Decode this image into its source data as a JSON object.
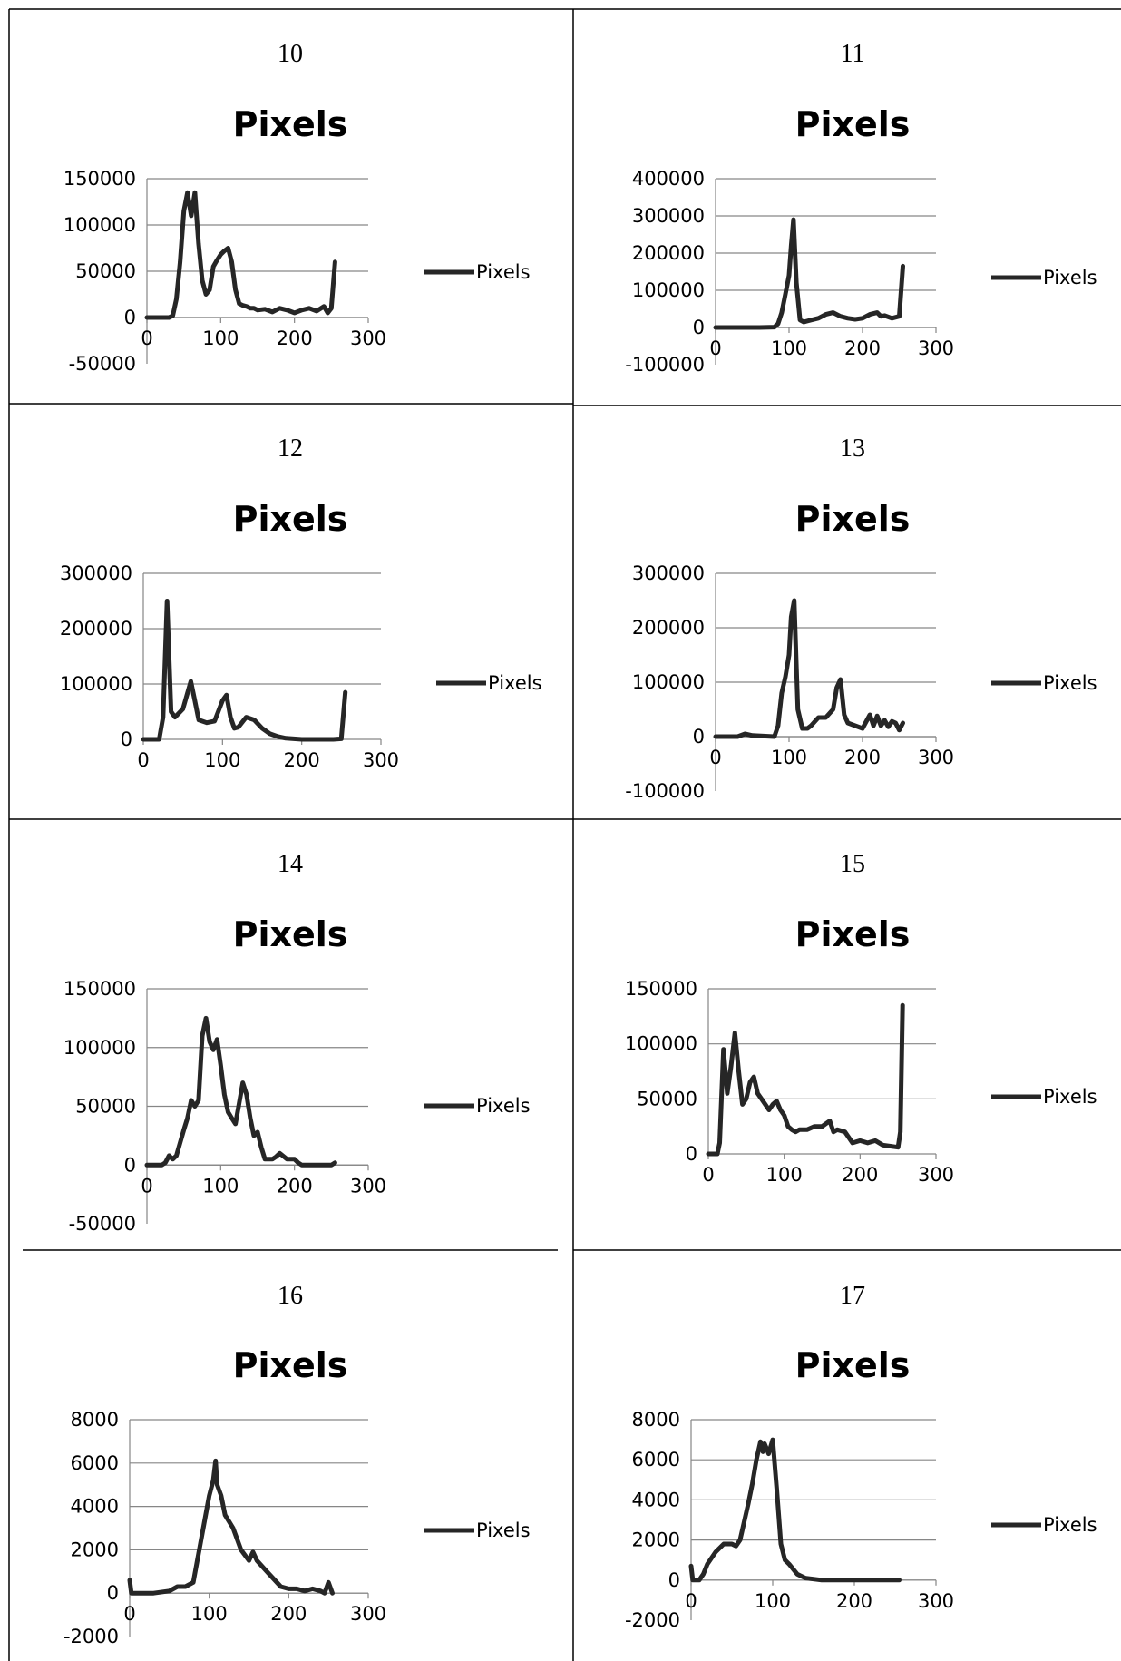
{
  "chart_data": [
    {
      "type": "line",
      "panel_number": "10",
      "title": "Pixels",
      "xlim": [
        0,
        300
      ],
      "ylim": [
        -50000,
        150000
      ],
      "ystep": 50000,
      "xstep": 100,
      "legend": "right",
      "yticks": [
        "150000",
        "100000",
        "50000",
        "0",
        "-50000"
      ],
      "xticks": [
        "0",
        "100",
        "200",
        "300"
      ],
      "series": [
        {
          "name": "Pixels",
          "x": [
            0,
            20,
            30,
            35,
            40,
            45,
            50,
            55,
            60,
            65,
            70,
            75,
            80,
            85,
            90,
            95,
            100,
            105,
            110,
            115,
            120,
            125,
            130,
            135,
            140,
            145,
            150,
            160,
            170,
            180,
            190,
            200,
            210,
            220,
            230,
            240,
            245,
            250,
            255
          ],
          "values": [
            0,
            0,
            0,
            2000,
            20000,
            60000,
            115000,
            135000,
            110000,
            135000,
            80000,
            40000,
            25000,
            30000,
            55000,
            62000,
            68000,
            72000,
            75000,
            60000,
            30000,
            15000,
            13000,
            12000,
            10000,
            10000,
            8000,
            9000,
            6000,
            10000,
            8000,
            5000,
            8000,
            10000,
            7000,
            12000,
            5000,
            10000,
            60000
          ]
        }
      ]
    },
    {
      "type": "line",
      "panel_number": "11",
      "title": "Pixels",
      "xlim": [
        0,
        300
      ],
      "ylim": [
        -100000,
        400000
      ],
      "ystep": 100000,
      "xstep": 100,
      "legend": "right",
      "yticks": [
        "400000",
        "300000",
        "200000",
        "100000",
        "0",
        "-100000"
      ],
      "xticks": [
        "0",
        "100",
        "200",
        "300"
      ],
      "series": [
        {
          "name": "Pixels",
          "x": [
            0,
            60,
            80,
            85,
            90,
            95,
            100,
            103,
            106,
            110,
            115,
            120,
            130,
            140,
            150,
            160,
            170,
            180,
            190,
            200,
            210,
            220,
            225,
            230,
            240,
            250,
            255
          ],
          "values": [
            0,
            0,
            1000,
            10000,
            40000,
            90000,
            140000,
            220000,
            290000,
            120000,
            20000,
            15000,
            20000,
            25000,
            35000,
            40000,
            30000,
            25000,
            22000,
            25000,
            35000,
            40000,
            30000,
            32000,
            25000,
            30000,
            165000
          ]
        }
      ]
    },
    {
      "type": "line",
      "panel_number": "12",
      "title": "Pixels",
      "xlim": [
        0,
        300
      ],
      "ylim": [
        0,
        300000
      ],
      "ystep": 100000,
      "xstep": 100,
      "legend": "right",
      "yticks": [
        "300000",
        "200000",
        "100000",
        "0"
      ],
      "xticks": [
        "0",
        "100",
        "200",
        "300"
      ],
      "series": [
        {
          "name": "Pixels",
          "x": [
            0,
            20,
            25,
            30,
            35,
            40,
            50,
            60,
            65,
            70,
            80,
            90,
            100,
            105,
            110,
            115,
            120,
            130,
            140,
            150,
            160,
            170,
            180,
            200,
            220,
            240,
            250,
            255
          ],
          "values": [
            0,
            0,
            40000,
            250000,
            50000,
            40000,
            55000,
            105000,
            70000,
            35000,
            30000,
            33000,
            70000,
            80000,
            40000,
            20000,
            22000,
            40000,
            35000,
            20000,
            10000,
            5000,
            2000,
            0,
            0,
            0,
            1000,
            85000
          ]
        }
      ]
    },
    {
      "type": "line",
      "panel_number": "13",
      "title": "Pixels",
      "xlim": [
        0,
        300
      ],
      "ylim": [
        -100000,
        300000
      ],
      "ystep": 100000,
      "xstep": 100,
      "legend": "right",
      "yticks": [
        "300000",
        "200000",
        "100000",
        "0",
        "-100000"
      ],
      "xticks": [
        "0",
        "100",
        "200",
        "300"
      ],
      "series": [
        {
          "name": "Pixels",
          "x": [
            0,
            30,
            40,
            50,
            80,
            85,
            90,
            95,
            100,
            103,
            107,
            112,
            118,
            125,
            130,
            140,
            150,
            160,
            165,
            170,
            175,
            180,
            190,
            200,
            210,
            215,
            220,
            225,
            230,
            235,
            240,
            245,
            250,
            255
          ],
          "values": [
            0,
            0,
            5000,
            2000,
            0,
            20000,
            80000,
            110000,
            150000,
            220000,
            250000,
            50000,
            15000,
            15000,
            20000,
            35000,
            35000,
            50000,
            90000,
            105000,
            40000,
            25000,
            20000,
            15000,
            40000,
            20000,
            38000,
            20000,
            30000,
            18000,
            28000,
            25000,
            12000,
            25000
          ]
        }
      ]
    },
    {
      "type": "line",
      "panel_number": "14",
      "title": "Pixels",
      "xlim": [
        0,
        300
      ],
      "ylim": [
        -50000,
        150000
      ],
      "ystep": 50000,
      "xstep": 100,
      "legend": "right",
      "yticks": [
        "150000",
        "100000",
        "50000",
        "0",
        "-50000"
      ],
      "xticks": [
        "0",
        "100",
        "200",
        "300"
      ],
      "series": [
        {
          "name": "Pixels",
          "x": [
            0,
            20,
            25,
            30,
            35,
            40,
            50,
            55,
            60,
            65,
            70,
            75,
            80,
            85,
            90,
            95,
            100,
            105,
            110,
            115,
            120,
            130,
            135,
            140,
            145,
            150,
            155,
            160,
            165,
            170,
            175,
            180,
            190,
            200,
            205,
            210,
            220,
            230,
            240,
            250,
            255
          ],
          "values": [
            0,
            0,
            2000,
            8000,
            5000,
            8000,
            30000,
            40000,
            55000,
            50000,
            55000,
            110000,
            125000,
            105000,
            98000,
            107000,
            85000,
            60000,
            45000,
            40000,
            35000,
            70000,
            60000,
            40000,
            25000,
            28000,
            15000,
            5000,
            5000,
            5000,
            7000,
            10000,
            5000,
            5000,
            2000,
            0,
            0,
            0,
            0,
            0,
            2000
          ]
        }
      ]
    },
    {
      "type": "line",
      "panel_number": "15",
      "title": "Pixels",
      "xlim": [
        0,
        300
      ],
      "ylim": [
        0,
        150000
      ],
      "ystep": 50000,
      "xstep": 100,
      "legend": "right",
      "yticks": [
        "150000",
        "100000",
        "50000",
        "0"
      ],
      "xticks": [
        "0",
        "100",
        "200",
        "300"
      ],
      "series": [
        {
          "name": "Pixels",
          "x": [
            0,
            12,
            15,
            20,
            25,
            30,
            35,
            40,
            45,
            50,
            55,
            60,
            65,
            70,
            75,
            80,
            85,
            90,
            95,
            100,
            105,
            110,
            115,
            120,
            130,
            140,
            150,
            160,
            165,
            170,
            180,
            190,
            200,
            210,
            220,
            230,
            240,
            250,
            253,
            256
          ],
          "values": [
            0,
            0,
            10000,
            95000,
            55000,
            80000,
            110000,
            75000,
            45000,
            50000,
            65000,
            70000,
            55000,
            50000,
            45000,
            40000,
            45000,
            48000,
            40000,
            35000,
            25000,
            22000,
            20000,
            22000,
            22000,
            25000,
            25000,
            30000,
            20000,
            22000,
            20000,
            10000,
            12000,
            10000,
            12000,
            8000,
            7000,
            6000,
            20000,
            135000
          ]
        }
      ]
    },
    {
      "type": "line",
      "panel_number": "16",
      "title": "Pixels",
      "xlim": [
        0,
        300
      ],
      "ylim": [
        -2000,
        8000
      ],
      "ystep": 2000,
      "xstep": 100,
      "legend": "right",
      "yticks": [
        "8000",
        "6000",
        "4000",
        "2000",
        "0",
        "-2000"
      ],
      "xticks": [
        "0",
        "100",
        "200",
        "300"
      ],
      "series": [
        {
          "name": "Pixels",
          "x": [
            0,
            2,
            5,
            30,
            50,
            60,
            70,
            80,
            90,
            100,
            105,
            108,
            110,
            115,
            120,
            125,
            130,
            140,
            150,
            155,
            160,
            165,
            170,
            180,
            190,
            200,
            210,
            220,
            230,
            240,
            245,
            250,
            255
          ],
          "values": [
            600,
            0,
            0,
            0,
            100,
            300,
            300,
            500,
            2500,
            4500,
            5200,
            6100,
            5000,
            4500,
            3600,
            3300,
            3000,
            2000,
            1500,
            1900,
            1500,
            1300,
            1100,
            700,
            300,
            200,
            200,
            100,
            200,
            100,
            0,
            500,
            0
          ]
        }
      ]
    },
    {
      "type": "line",
      "panel_number": "17",
      "title": "Pixels",
      "xlim": [
        0,
        300
      ],
      "ylim": [
        -2000,
        8000
      ],
      "ystep": 2000,
      "xstep": 100,
      "legend": "right",
      "yticks": [
        "8000",
        "6000",
        "4000",
        "2000",
        "0",
        "-2000"
      ],
      "xticks": [
        "0",
        "100",
        "200",
        "300"
      ],
      "series": [
        {
          "name": "Pixels",
          "x": [
            0,
            2,
            10,
            15,
            20,
            30,
            40,
            50,
            55,
            60,
            70,
            75,
            80,
            85,
            88,
            90,
            95,
            100,
            105,
            110,
            115,
            120,
            130,
            140,
            150,
            160,
            170,
            180,
            200,
            220,
            240,
            255
          ],
          "values": [
            700,
            0,
            0,
            300,
            800,
            1400,
            1800,
            1800,
            1700,
            2000,
            3800,
            4800,
            6000,
            6900,
            6400,
            6800,
            6300,
            7000,
            4500,
            1800,
            1000,
            800,
            300,
            100,
            50,
            0,
            0,
            0,
            0,
            0,
            0,
            0
          ]
        }
      ]
    }
  ]
}
